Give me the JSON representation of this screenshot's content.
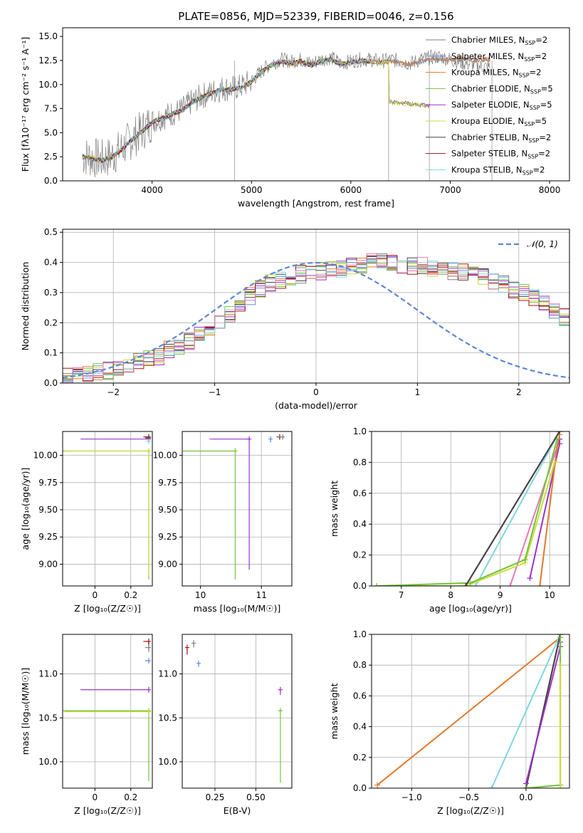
{
  "chart_data": [
    {
      "id": "spectrum",
      "type": "line",
      "title": "PLATE=0856, MJD=52339, FIBERID=0046, z=0.156",
      "xlabel": "wavelength [Angstrom, rest frame]",
      "ylabel": "Flux [fλ10⁻¹⁷ erg cm⁻² s⁻¹ A⁻¹]",
      "xlim": [
        3100,
        8200
      ],
      "ylim": [
        0,
        15.9
      ],
      "xticks": [
        4000,
        5000,
        6000,
        7000,
        8000
      ],
      "yticks": [
        0.0,
        2.5,
        5.0,
        7.5,
        10.0,
        12.5,
        15.0
      ],
      "data_series": {
        "name": "data",
        "color": "#808080",
        "x": [
          3300,
          3400,
          3500,
          3600,
          3700,
          3800,
          3900,
          4000,
          4100,
          4200,
          4300,
          4400,
          4500,
          4600,
          4700,
          4800,
          4900,
          5000,
          5100,
          5200,
          5300,
          5400,
          5500,
          5600,
          5700,
          5800,
          5900,
          6000,
          6100,
          6200,
          6300,
          6400,
          6500,
          6600,
          6700,
          6800,
          6900,
          7000,
          7100,
          7200,
          7300,
          7400
        ],
        "y": [
          2.6,
          2.4,
          2.2,
          2.6,
          3.4,
          4.4,
          5.2,
          6.2,
          6.6,
          7.0,
          7.4,
          8.2,
          8.8,
          9.2,
          9.6,
          9.6,
          9.8,
          10.4,
          11.4,
          12.2,
          12.6,
          12.4,
          12.6,
          12.2,
          12.6,
          12.8,
          12.2,
          12.4,
          12.6,
          12.6,
          12.4,
          12.6,
          12.4,
          12.2,
          12.6,
          12.8,
          12.9,
          12.6,
          12.3,
          12.1,
          11.9,
          11.8
        ]
      },
      "model_shape": {
        "x": [
          3300,
          3400,
          3500,
          3600,
          3700,
          3800,
          3900,
          4000,
          4100,
          4200,
          4300,
          4400,
          4500,
          4600,
          4700,
          4800,
          4900,
          5000,
          5100,
          5200,
          5300,
          5400,
          5500,
          5600,
          5700,
          5800,
          5900,
          6000,
          6100,
          6200,
          6300,
          6400,
          6500,
          6600,
          6700,
          6800
        ],
        "y": [
          2.5,
          2.3,
          2.1,
          2.5,
          3.3,
          4.3,
          5.1,
          6.1,
          6.5,
          6.9,
          7.3,
          8.1,
          8.7,
          9.1,
          9.5,
          9.5,
          9.7,
          10.3,
          11.3,
          12.0,
          12.4,
          12.2,
          12.4,
          12.0,
          12.4,
          12.6,
          12.1,
          12.3,
          12.5,
          12.4,
          12.3,
          12.4,
          12.3,
          12.1,
          12.4,
          12.6
        ]
      },
      "series": [
        {
          "name": "Chabrier MILES, N",
          "sub": "SSP",
          "suffix": "=2",
          "color": "#808080",
          "xmax": 7400
        },
        {
          "name": "Salpeter MILES, N",
          "sub": "SSP",
          "suffix": "=2",
          "color": "#6a8fd8",
          "xmax": 7400
        },
        {
          "name": "Kroupa MILES, N",
          "sub": "SSP",
          "suffix": "=2",
          "color": "#e07b28",
          "xmax": 7400
        },
        {
          "name": "Chabrier ELODIE, N",
          "sub": "SSP",
          "suffix": "=5",
          "color": "#74c33b",
          "xmax": 6800
        },
        {
          "name": "Salpeter ELODIE, N",
          "sub": "SSP",
          "suffix": "=5",
          "color": "#9932cc",
          "xmax": 6800
        },
        {
          "name": "Kroupa ELODIE, N",
          "sub": "SSP",
          "suffix": "=5",
          "color": "#cddc39",
          "xmax": 6800
        },
        {
          "name": "Chabrier STELIB, N",
          "sub": "SSP",
          "suffix": "=2",
          "color": "#444444",
          "xmax": 6200
        },
        {
          "name": "Salpeter STELIB, N",
          "sub": "SSP",
          "suffix": "=2",
          "color": "#a31515",
          "xmax": 6200
        },
        {
          "name": "Kroupa STELIB, N",
          "sub": "SSP",
          "suffix": "=2",
          "color": "#7fd6df",
          "xmax": 6200
        }
      ],
      "legend": "top-right",
      "grid": false
    },
    {
      "id": "residuals",
      "type": "line",
      "xlabel": "(data-model)/error",
      "ylabel": "Normed distribution",
      "xlim": [
        -2.5,
        2.5
      ],
      "ylim": [
        0,
        0.51
      ],
      "xticks": [
        -2,
        -1,
        0,
        1,
        2
      ],
      "yticks": [
        0.0,
        0.1,
        0.2,
        0.3,
        0.4,
        0.5
      ],
      "normal_label": "𝒩(0, 1)",
      "normal_color": "#5b87d8",
      "legend": "top-right",
      "grid": true,
      "bins": {
        "start": -2.5,
        "width": 0.1,
        "shape": [
          0.02,
          0.03,
          0.03,
          0.04,
          0.04,
          0.05,
          0.06,
          0.07,
          0.08,
          0.09,
          0.11,
          0.12,
          0.14,
          0.16,
          0.18,
          0.2,
          0.23,
          0.26,
          0.29,
          0.31,
          0.33,
          0.34,
          0.35,
          0.36,
          0.37,
          0.37,
          0.38,
          0.38,
          0.39,
          0.39,
          0.4,
          0.4,
          0.4,
          0.39,
          0.39,
          0.39,
          0.38,
          0.38,
          0.37,
          0.37,
          0.36,
          0.35,
          0.34,
          0.33,
          0.31,
          0.3,
          0.28,
          0.26,
          0.24,
          0.22,
          0.2
        ],
        "tail_shape": [
          0.2,
          0.19,
          0.18,
          0.17,
          0.16,
          0.15,
          0.14,
          0.13,
          0.12,
          0.11,
          0.1,
          0.09,
          0.08,
          0.08,
          0.07,
          0.07,
          0.06,
          0.06,
          0.05,
          0.05,
          0.04
        ]
      },
      "hist_colors": [
        "#808080",
        "#6a8fd8",
        "#e07b28",
        "#74c33b",
        "#9932cc",
        "#cddc39",
        "#444444",
        "#a31515",
        "#7fd6df",
        "#e67ab5"
      ]
    },
    {
      "id": "age_vs_Z",
      "type": "scatter",
      "xlabel": "Z [log₁₀(Z/Z☉)]",
      "ylabel": "age  [log₁₀(age/yr)]",
      "xlim": [
        -0.18,
        0.32
      ],
      "ylim": [
        8.8,
        10.22
      ],
      "xticks": [
        0.0,
        0.2
      ],
      "yticks": [
        9.0,
        9.25,
        9.5,
        9.75,
        10.0
      ],
      "ytick_labels": [
        "9.00",
        "9.25",
        "9.50",
        "9.75",
        "10.00"
      ],
      "grid": true,
      "errorbars": [
        {
          "x": 0.3,
          "y": 10.04,
          "xerr_lo": 0.48,
          "yerr_lo": 1.18,
          "color": "#74c33b"
        },
        {
          "x": 0.3,
          "y": 10.04,
          "xerr_lo": 0.47,
          "yerr_lo": 1.15,
          "color": "#cddc39"
        },
        {
          "x": 0.3,
          "y": 10.15,
          "xerr_lo": 0.38,
          "yerr_lo": 0.0,
          "color": "#9932cc"
        },
        {
          "x": 0.3,
          "y": 10.17,
          "xerr_lo": 0.03,
          "yerr_lo": 0.0,
          "color": "#a31515"
        },
        {
          "x": 0.3,
          "y": 10.16,
          "xerr_lo": 0.02,
          "yerr_lo": 0.0,
          "color": "#444444"
        },
        {
          "x": 0.3,
          "y": 10.13,
          "xerr_lo": 0.01,
          "yerr_lo": 0.0,
          "color": "#7fd6df"
        }
      ]
    },
    {
      "id": "age_vs_mass",
      "type": "scatter",
      "xlabel": "mass [log₁₀(M/M☉)]",
      "xlim": [
        9.7,
        11.5
      ],
      "ylim": [
        8.8,
        10.22
      ],
      "xticks": [
        10,
        11
      ],
      "yticks": [
        9.0,
        9.25,
        9.5,
        9.75,
        10.0
      ],
      "ytick_labels": [
        "9.00",
        "9.25",
        "9.50",
        "9.75",
        "10.00"
      ],
      "grid": true,
      "errorbars": [
        {
          "x": 10.57,
          "y": 10.04,
          "xerr_lo": 0.87,
          "yerr_lo": 1.18,
          "color": "#74c33b"
        },
        {
          "x": 10.8,
          "y": 10.15,
          "xerr_lo": 0.65,
          "yerr_lo": 1.2,
          "color": "#9932cc"
        },
        {
          "x": 11.15,
          "y": 10.15,
          "xerr_lo": 0.0,
          "yerr_lo": 0.03,
          "color": "#6a8fd8"
        },
        {
          "x": 11.3,
          "y": 10.17,
          "xerr_lo": 0.05,
          "yerr_lo": 0.02,
          "color": "#a31515"
        },
        {
          "x": 11.35,
          "y": 10.17,
          "xerr_lo": 0.08,
          "yerr_lo": 0.0,
          "color": "#808080"
        }
      ]
    },
    {
      "id": "weight_vs_age",
      "type": "line",
      "xlabel": "age  [log₁₀(age/yr)]",
      "ylabel": "mass weight",
      "xlim": [
        6.4,
        10.4
      ],
      "ylim": [
        0.0,
        1.0
      ],
      "xticks": [
        7,
        8,
        9,
        10
      ],
      "yticks": [
        0.0,
        0.2,
        0.4,
        0.6,
        0.8,
        1.0
      ],
      "grid": true,
      "lines": [
        {
          "color": "#a31515",
          "x": [
            8.3,
            10.2
          ],
          "y": [
            0.0,
            1.0
          ]
        },
        {
          "color": "#7fd6df",
          "x": [
            8.5,
            10.2
          ],
          "y": [
            0.0,
            1.0
          ]
        },
        {
          "color": "#e67ab5",
          "x": [
            9.2,
            10.1,
            10.2
          ],
          "y": [
            0.0,
            0.85,
            0.95
          ]
        },
        {
          "color": "#9932cc",
          "x": [
            9.6,
            10.2,
            10.2
          ],
          "y": [
            0.05,
            0.92,
            0.95
          ]
        },
        {
          "color": "#e07b28",
          "x": [
            9.8,
            10.15,
            10.2
          ],
          "y": [
            0.0,
            0.9,
            0.98
          ]
        },
        {
          "color": "#cddc39",
          "x": [
            6.5,
            8.3,
            9.5,
            10.1
          ],
          "y": [
            0.0,
            0.0,
            0.15,
            0.8
          ]
        },
        {
          "color": "#74c33b",
          "x": [
            6.5,
            8.4,
            9.5,
            10.15
          ],
          "y": [
            0.0,
            0.02,
            0.17,
            0.95
          ]
        },
        {
          "color": "#444444",
          "x": [
            8.3,
            10.2
          ],
          "y": [
            0.0,
            1.0
          ]
        }
      ]
    },
    {
      "id": "mass_vs_Z",
      "type": "scatter",
      "xlabel": "Z [log₁₀(Z/Z☉)]",
      "ylabel": "mass [log₁₀(M/M☉)]",
      "xlim": [
        -0.18,
        0.32
      ],
      "ylim": [
        9.7,
        11.45
      ],
      "xticks": [
        0.0,
        0.2
      ],
      "yticks": [
        10.0,
        10.5,
        11.0
      ],
      "grid": true,
      "errorbars": [
        {
          "x": 0.3,
          "y": 10.58,
          "xerr_lo": 0.48,
          "yerr_lo": 0.8,
          "color": "#74c33b"
        },
        {
          "x": 0.3,
          "y": 10.57,
          "xerr_lo": 0.47,
          "yerr_lo": 0.05,
          "color": "#cddc39"
        },
        {
          "x": 0.3,
          "y": 10.82,
          "xerr_lo": 0.38,
          "yerr_lo": 0.0,
          "color": "#9932cc"
        },
        {
          "x": 0.3,
          "y": 11.37,
          "xerr_lo": 0.03,
          "yerr_lo": 0.05,
          "color": "#a31515"
        },
        {
          "x": 0.3,
          "y": 11.3,
          "xerr_lo": 0.02,
          "yerr_lo": 0.05,
          "color": "#808080"
        },
        {
          "x": 0.3,
          "y": 11.15,
          "xerr_lo": 0.02,
          "yerr_lo": 0.02,
          "color": "#6a8fd8"
        }
      ]
    },
    {
      "id": "mass_vs_EBV",
      "type": "scatter",
      "xlabel": "E(B-V)",
      "xlim": [
        0.05,
        0.72
      ],
      "ylim": [
        9.7,
        11.45
      ],
      "xticks": [
        0.25,
        0.5
      ],
      "xtick_labels": [
        "0.25",
        "0.50"
      ],
      "yticks": [
        10.0,
        10.5,
        11.0
      ],
      "grid": true,
      "errorbars": [
        {
          "x": 0.65,
          "y": 10.58,
          "xerr_lo": 0.0,
          "yerr_lo": 0.82,
          "color": "#74c33b"
        },
        {
          "x": 0.65,
          "y": 10.82,
          "xerr_lo": 0.0,
          "yerr_lo": 0.06,
          "color": "#9932cc"
        },
        {
          "x": 0.08,
          "y": 11.3,
          "xerr_lo": 0.0,
          "yerr_lo": 0.08,
          "color": "#a31515"
        },
        {
          "x": 0.12,
          "y": 11.35,
          "xerr_lo": 0.0,
          "yerr_lo": 0.05,
          "color": "#808080"
        },
        {
          "x": 0.15,
          "y": 11.12,
          "xerr_lo": 0.0,
          "yerr_lo": 0.04,
          "color": "#6a8fd8"
        }
      ]
    },
    {
      "id": "weight_vs_Z",
      "type": "line",
      "xlabel": "Z [log₁₀(Z/Z☉)]",
      "ylabel": "mass weight",
      "xlim": [
        -1.35,
        0.38
      ],
      "ylim": [
        0.0,
        1.0
      ],
      "xticks": [
        -1.0,
        -0.5,
        0.0
      ],
      "xtick_labels": [
        "−1.0",
        "−0.5",
        "0.0"
      ],
      "yticks": [
        0.0,
        0.2,
        0.4,
        0.6,
        0.8,
        1.0
      ],
      "grid": true,
      "lines": [
        {
          "color": "#e07b28",
          "x": [
            -1.3,
            0.3
          ],
          "y": [
            0.02,
            0.98
          ]
        },
        {
          "color": "#7fd6df",
          "x": [
            -0.3,
            0.3
          ],
          "y": [
            0.0,
            1.0
          ]
        },
        {
          "color": "#a31515",
          "x": [
            0.0,
            0.3
          ],
          "y": [
            0.0,
            1.0
          ]
        },
        {
          "color": "#444444",
          "x": [
            0.0,
            0.3
          ],
          "y": [
            0.0,
            1.0
          ]
        },
        {
          "color": "#9932cc",
          "x": [
            0.0,
            0.3,
            0.3
          ],
          "y": [
            0.03,
            0.92,
            0.95
          ]
        },
        {
          "color": "#74c33b",
          "x": [
            0.0,
            0.3,
            0.3
          ],
          "y": [
            0.0,
            0.02,
            0.98
          ]
        },
        {
          "color": "#cddc39",
          "x": [
            0.3,
            0.3
          ],
          "y": [
            0.0,
            0.8
          ]
        }
      ]
    }
  ]
}
